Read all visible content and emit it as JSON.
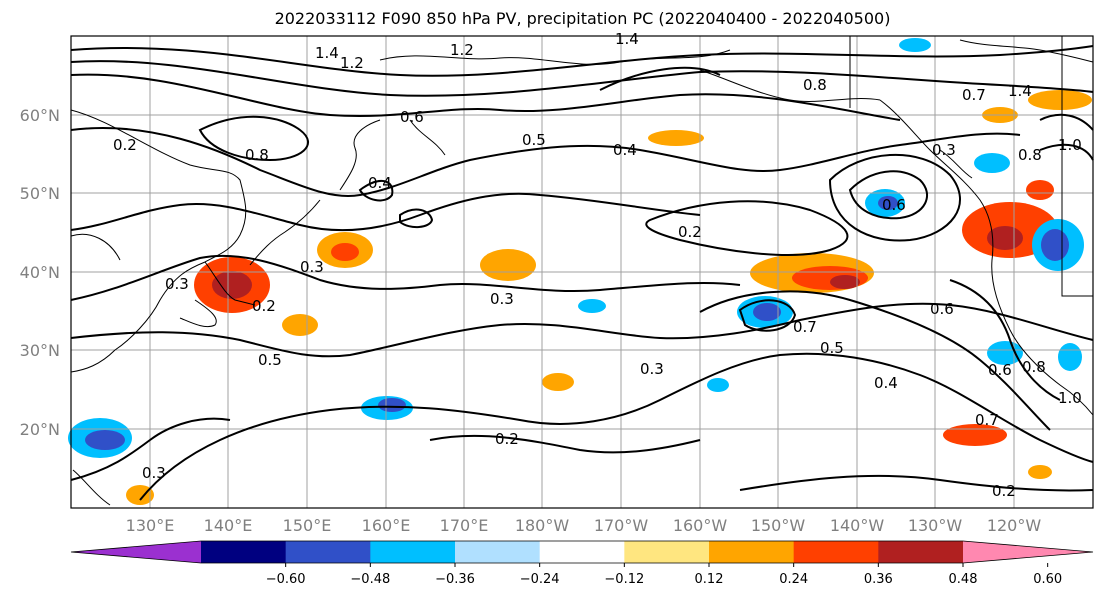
{
  "title": "2022033112 F090 850 hPa PV, precipitation PC (2022040400 - 2022040500)",
  "map": {
    "lon_labels": [
      "130°E",
      "140°E",
      "150°E",
      "160°E",
      "170°E",
      "180°W",
      "170°W",
      "160°W",
      "150°W",
      "140°W",
      "130°W",
      "120°W"
    ],
    "lat_labels": [
      "60°N",
      "50°N",
      "40°N",
      "30°N",
      "20°N"
    ],
    "grid": true,
    "contour_labels": [
      "1.4",
      "1.2",
      "1.2",
      "1.4",
      "0.2",
      "0.8",
      "0.6",
      "0.5",
      "0.4",
      "0.8",
      "0.7",
      "1.4",
      "0.8",
      "1.0",
      "0.3",
      "0.6",
      "0.4",
      "0.2",
      "0.3",
      "0.3",
      "0.2",
      "0.5",
      "0.3",
      "0.7",
      "0.6",
      "0.5",
      "0.3",
      "0.4",
      "0.6",
      "0.8",
      "0.7",
      "1.0",
      "0.2",
      "0.3",
      "0.2"
    ]
  },
  "colorbar": {
    "ticks": [
      "−0.60",
      "−0.48",
      "−0.36",
      "−0.24",
      "−0.12",
      "0.12",
      "0.24",
      "0.36",
      "0.48",
      "0.60"
    ],
    "colors": [
      "#9b30d0",
      "#000080",
      "#3050c8",
      "#00bfff",
      "#b0e0ff",
      "#ffffff",
      "#ffe680",
      "#ffa500",
      "#ff4000",
      "#b02020",
      "#ff88b0"
    ]
  },
  "colors": {
    "contour": "#000000",
    "grid": "#a0a0a0",
    "coast": "#000000"
  }
}
